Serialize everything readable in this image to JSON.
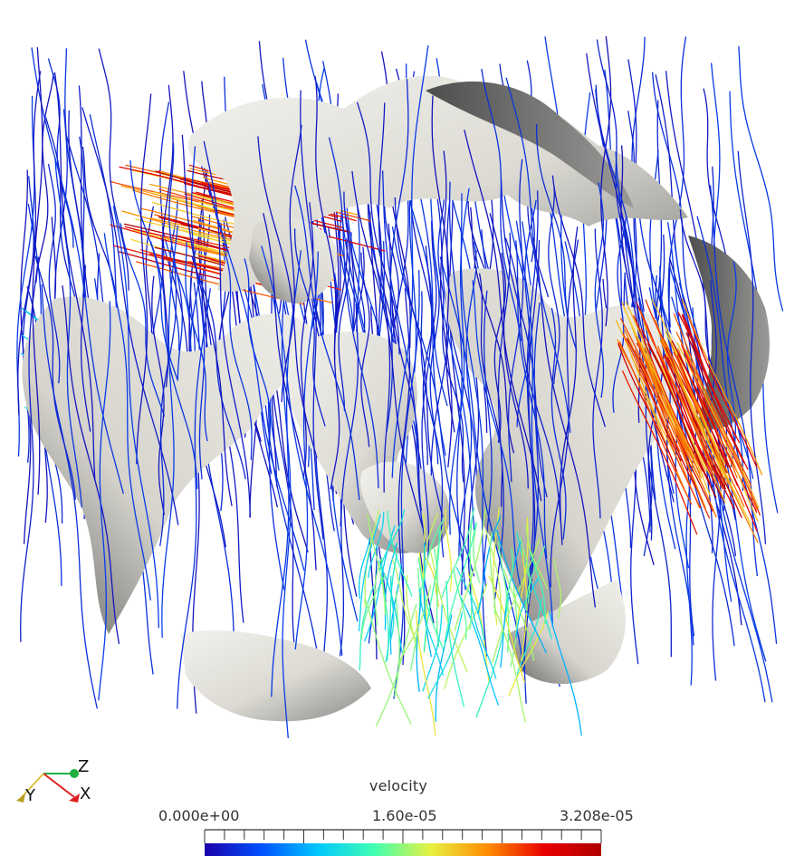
{
  "scene": {
    "description_icon": "porous-media-streamline-render",
    "background": "#ffffff",
    "surface_color": "#e8e6df",
    "surface_shadow": "#6f6f6f"
  },
  "orientation_axes": {
    "x_label": "X",
    "y_label": "Y",
    "z_label": "Z",
    "x_color": "#e02020",
    "y_color": "#d8c040",
    "z_color": "#20b040"
  },
  "colorbar": {
    "title": "velocity",
    "min_label": "0.000e+00",
    "mid_label": "1.60e-05",
    "max_label": "3.208e-05",
    "colormap": [
      "#1a00a8",
      "#0050ff",
      "#00c8ff",
      "#40ffb0",
      "#e8f040",
      "#ff8c00",
      "#e80000",
      "#b00000"
    ]
  }
}
